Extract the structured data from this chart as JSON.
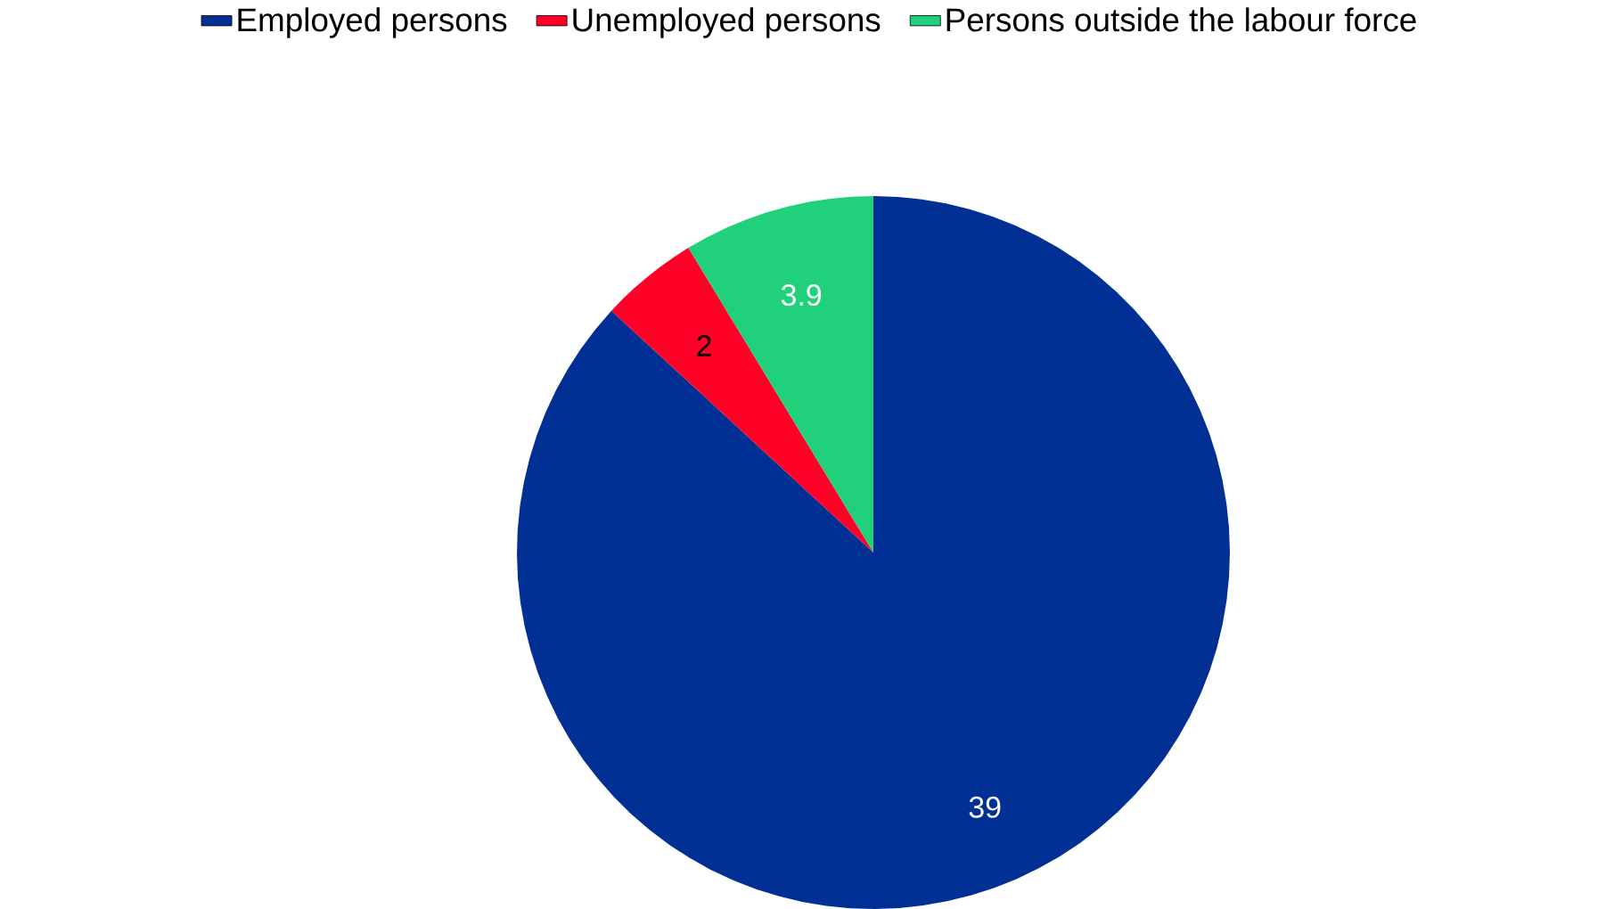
{
  "chart_data": {
    "type": "pie",
    "categories": [
      "Employed persons",
      "Unemployed persons",
      "Persons outside the labour force"
    ],
    "values": [
      39,
      2,
      3.9
    ],
    "colors": [
      "#003094",
      "#ff0027",
      "#20d07a"
    ],
    "data_labels": true,
    "legend": "top"
  }
}
